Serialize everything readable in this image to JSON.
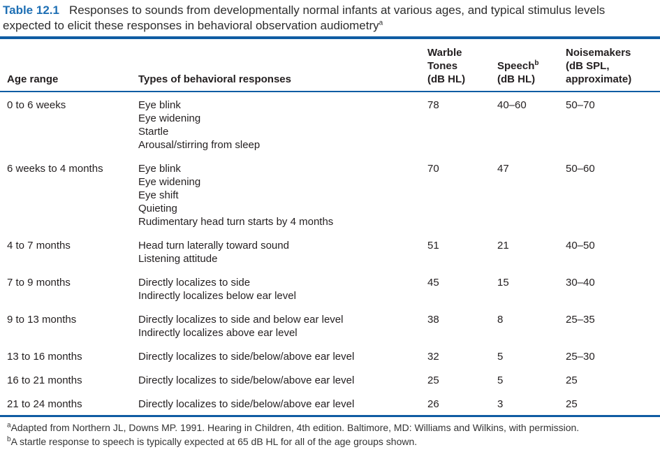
{
  "caption": {
    "label": "Table 12.1",
    "text": "Responses to sounds from developmentally normal infants at various ages, and typical stimulus levels expected to elicit these responses in behavioral observation audiometry",
    "superscript": "a"
  },
  "table": {
    "columns": [
      {
        "label": "Age range"
      },
      {
        "label": "Types of behavioral responses"
      },
      {
        "lines": [
          "Warble",
          "Tones",
          "(dB HL)"
        ]
      },
      {
        "lines": [
          "Speech",
          "(dB HL)"
        ],
        "superscript": "b"
      },
      {
        "lines": [
          "Noisemakers",
          "(dB SPL,",
          "approximate)"
        ]
      }
    ],
    "rows": [
      {
        "age": "0 to 6 weeks",
        "responses": [
          "Eye blink",
          "Eye widening",
          "Startle",
          "Arousal/stirring from sleep"
        ],
        "warble_tones": "78",
        "speech": "40–60",
        "noisemakers": "50–70"
      },
      {
        "age": "6 weeks to 4 months",
        "responses": [
          "Eye blink",
          "Eye widening",
          "Eye shift",
          "Quieting",
          "Rudimentary head turn starts by 4 months"
        ],
        "warble_tones": "70",
        "speech": "47",
        "noisemakers": "50–60"
      },
      {
        "age": "4 to 7 months",
        "responses": [
          "Head turn laterally toward sound",
          "Listening attitude"
        ],
        "warble_tones": "51",
        "speech": "21",
        "noisemakers": "40–50"
      },
      {
        "age": "7 to 9 months",
        "responses": [
          "Directly localizes to side",
          "Indirectly localizes below ear level"
        ],
        "warble_tones": "45",
        "speech": "15",
        "noisemakers": "30–40"
      },
      {
        "age": "9 to 13 months",
        "responses": [
          "Directly localizes to side and below ear level",
          "Indirectly localizes above ear level"
        ],
        "warble_tones": "38",
        "speech": "8",
        "noisemakers": "25–35"
      },
      {
        "age": "13 to 16 months",
        "responses": [
          "Directly localizes to side/below/above ear level"
        ],
        "warble_tones": "32",
        "speech": "5",
        "noisemakers": "25–30"
      },
      {
        "age": "16 to 21 months",
        "responses": [
          "Directly localizes to side/below/above ear level"
        ],
        "warble_tones": "25",
        "speech": "5",
        "noisemakers": "25"
      },
      {
        "age": "21 to 24 months",
        "responses": [
          "Directly localizes to side/below/above ear level"
        ],
        "warble_tones": "26",
        "speech": "3",
        "noisemakers": "25"
      }
    ]
  },
  "footnotes": [
    {
      "marker": "a",
      "text": "Adapted from Northern JL, Downs MP. 1991. Hearing in Children, 4th edition. Baltimore, MD: Williams and Wilkins, with permission."
    },
    {
      "marker": "b",
      "text": "A startle response to speech is typically expected at 65 dB HL for all of the age groups shown."
    }
  ],
  "colors": {
    "accent_blue": "#1e6fb4",
    "rule_blue": "#0f5ca3",
    "text_ink": "#231f20"
  }
}
